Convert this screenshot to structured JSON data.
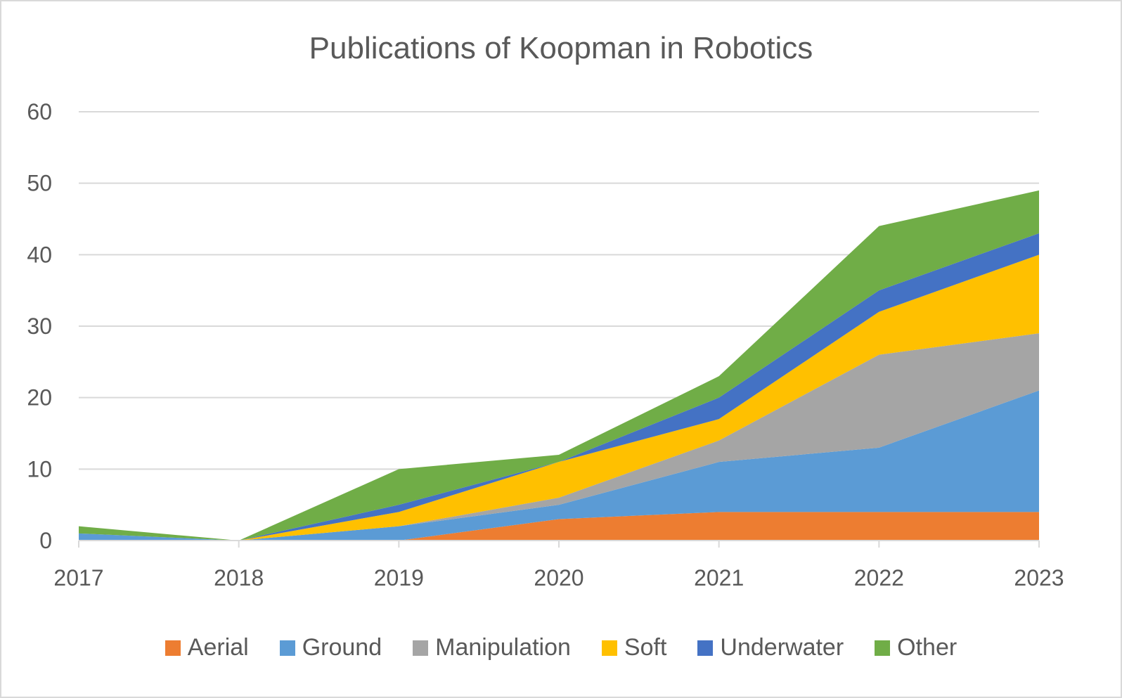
{
  "chart_data": {
    "type": "area",
    "stacked": true,
    "title": "Publications of Koopman in Robotics",
    "xlabel": "",
    "ylabel": "",
    "categories": [
      "2017",
      "2018",
      "2019",
      "2020",
      "2021",
      "2022",
      "2023"
    ],
    "ylim": [
      0,
      60
    ],
    "yticks": [
      0,
      10,
      20,
      30,
      40,
      50,
      60
    ],
    "grid": true,
    "legend_position": "bottom",
    "series": [
      {
        "name": "Aerial",
        "color": "#ED7D31",
        "values": [
          0,
          0,
          0,
          3,
          4,
          4,
          4
        ]
      },
      {
        "name": "Ground",
        "color": "#5B9BD5",
        "values": [
          1,
          0,
          2,
          2,
          7,
          9,
          17
        ]
      },
      {
        "name": "Manipulation",
        "color": "#A5A5A5",
        "values": [
          0,
          0,
          0,
          1,
          3,
          13,
          8
        ]
      },
      {
        "name": "Soft",
        "color": "#FFC000",
        "values": [
          0,
          0,
          2,
          5,
          3,
          6,
          11
        ]
      },
      {
        "name": "Underwater",
        "color": "#4472C4",
        "values": [
          0,
          0,
          1,
          0,
          3,
          3,
          3
        ]
      },
      {
        "name": "Other",
        "color": "#70AD47",
        "values": [
          1,
          0,
          5,
          1,
          3,
          9,
          6
        ]
      }
    ]
  }
}
